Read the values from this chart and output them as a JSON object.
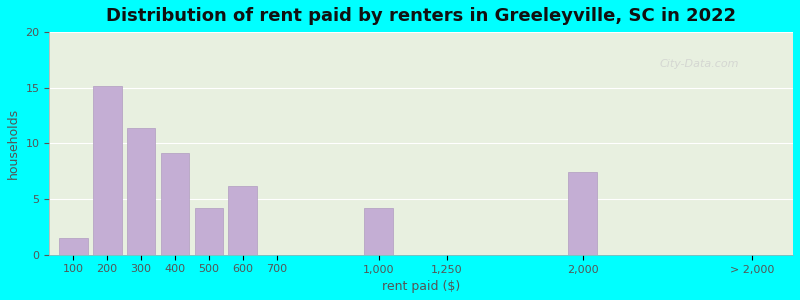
{
  "title": "Distribution of rent paid by renters in Greeleyville, SC in 2022",
  "xlabel": "rent paid ($)",
  "ylabel": "households",
  "background_color": "#00FFFF",
  "plot_bg_gradient_top": "#f0f4e8",
  "plot_bg_gradient_bottom": "#e8f0e8",
  "bar_color": "#c4aed4",
  "bar_edge_color": "#b09cc0",
  "ylim": [
    0,
    20
  ],
  "yticks": [
    0,
    5,
    10,
    15,
    20
  ],
  "categories": [
    "100",
    "200",
    "300",
    "400",
    "500",
    "600",
    "700",
    "1,000",
    "1,250",
    "2,000",
    "> 2,000"
  ],
  "values": [
    1.5,
    15.2,
    11.4,
    9.1,
    4.2,
    6.2,
    0,
    4.2,
    0,
    7.4,
    0
  ],
  "bar_widths": [
    0.8,
    0.8,
    0.8,
    0.8,
    0.8,
    0.8,
    0.8,
    0.8,
    0.8,
    0.8,
    0.8
  ],
  "watermark": "City-Data.com",
  "title_fontsize": 13,
  "axis_label_fontsize": 9,
  "tick_fontsize": 8
}
